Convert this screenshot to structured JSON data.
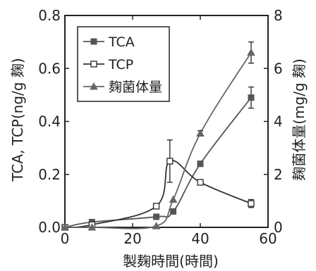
{
  "chart_data": {
    "type": "line",
    "title": "",
    "xlabel": "製麹時間(時間)",
    "ylabel_left": "TCA, TCP(ng/g 麹)",
    "ylabel_right": "麹菌体量(mg/g 麹)",
    "xlim": [
      0,
      60
    ],
    "ylim_left": [
      0,
      0.8
    ],
    "ylim_right": [
      0,
      8
    ],
    "x_ticks": [
      "0",
      "20",
      "40",
      "60"
    ],
    "y_left_ticks": [
      "0.0",
      "0.2",
      "0.4",
      "0.6",
      "0.8"
    ],
    "y_right_ticks": [
      "0",
      "2",
      "4",
      "6",
      "8"
    ],
    "grid": false,
    "legend_position": "top-left",
    "series": [
      {
        "name": "TCA",
        "axis": "left",
        "marker": "filled-square",
        "color": "#555555",
        "x": [
          0,
          8,
          27,
          32,
          40,
          55
        ],
        "y": [
          0.0,
          0.02,
          0.04,
          0.06,
          0.24,
          0.49
        ],
        "err": [
          0,
          0,
          0,
          0,
          0.01,
          0.04
        ]
      },
      {
        "name": "TCP",
        "axis": "left",
        "marker": "open-square",
        "color": "#333333",
        "x": [
          0,
          8,
          27,
          31,
          40,
          55
        ],
        "y": [
          0.0,
          0.01,
          0.08,
          0.25,
          0.17,
          0.09
        ],
        "err": [
          0,
          0,
          0,
          0.08,
          0.01,
          0.015
        ]
      },
      {
        "name": "麹菌体量",
        "axis": "right",
        "marker": "filled-triangle",
        "color": "#666666",
        "x": [
          0,
          8,
          27,
          32,
          40,
          55
        ],
        "y": [
          0.0,
          0.0,
          0.05,
          1.05,
          3.55,
          6.6
        ],
        "err": [
          0,
          0,
          0,
          0,
          0.1,
          0.4
        ]
      }
    ]
  }
}
